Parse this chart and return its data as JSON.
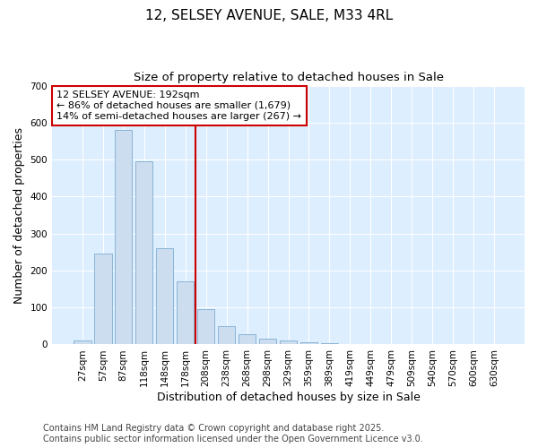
{
  "title1": "12, SELSEY AVENUE, SALE, M33 4RL",
  "title2": "Size of property relative to detached houses in Sale",
  "xlabel": "Distribution of detached houses by size in Sale",
  "ylabel": "Number of detached properties",
  "categories": [
    "27sqm",
    "57sqm",
    "87sqm",
    "118sqm",
    "148sqm",
    "178sqm",
    "208sqm",
    "238sqm",
    "268sqm",
    "298sqm",
    "329sqm",
    "359sqm",
    "389sqm",
    "419sqm",
    "449sqm",
    "479sqm",
    "509sqm",
    "540sqm",
    "570sqm",
    "600sqm",
    "630sqm"
  ],
  "values": [
    10,
    245,
    580,
    495,
    260,
    170,
    95,
    50,
    27,
    15,
    10,
    5,
    3,
    2,
    0,
    2,
    0,
    0,
    0,
    0,
    0
  ],
  "bar_color": "#ccddf0",
  "bar_edge_color": "#8ab4d4",
  "bar_width": 0.85,
  "redline_x": 5.5,
  "annotation_title": "12 SELSEY AVENUE: 192sqm",
  "annotation_line1": "← 86% of detached houses are smaller (1,679)",
  "annotation_line2": "14% of semi-detached houses are larger (267) →",
  "annotation_box_facecolor": "#ffffff",
  "annotation_box_edgecolor": "#cc0000",
  "redline_color": "#cc0000",
  "ylim": [
    0,
    700
  ],
  "yticks": [
    0,
    100,
    200,
    300,
    400,
    500,
    600,
    700
  ],
  "fig_background": "#ffffff",
  "plot_background": "#ddeeff",
  "grid_color": "#ffffff",
  "footer1": "Contains HM Land Registry data © Crown copyright and database right 2025.",
  "footer2": "Contains public sector information licensed under the Open Government Licence v3.0.",
  "title_fontsize": 11,
  "subtitle_fontsize": 9.5,
  "axis_label_fontsize": 9,
  "tick_fontsize": 7.5,
  "annotation_fontsize": 8,
  "footer_fontsize": 7
}
